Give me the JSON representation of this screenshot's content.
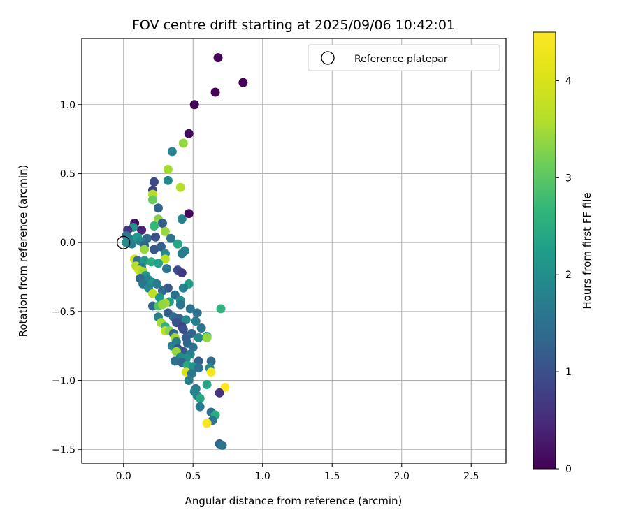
{
  "chart_data": {
    "type": "scatter",
    "title": "FOV centre drift starting at 2025/09/06 10:42:01",
    "xlabel": "Angular distance from reference (arcmin)",
    "ylabel": "Rotation from reference (arcmin)",
    "xlim": [
      -0.3,
      2.75
    ],
    "ylim": [
      -1.6,
      1.48
    ],
    "xticks": [
      0.0,
      0.5,
      1.0,
      1.5,
      2.0,
      2.5
    ],
    "xtick_labels": [
      "0.0",
      "0.5",
      "1.0",
      "1.5",
      "2.0",
      "2.5"
    ],
    "yticks": [
      -1.5,
      -1.0,
      -0.5,
      0.0,
      0.5,
      1.0
    ],
    "ytick_labels": [
      "−1.5",
      "−1.0",
      "−0.5",
      "0.0",
      "0.5",
      "1.0"
    ],
    "grid": true,
    "legend": {
      "placement": "top-right",
      "entries": [
        "Reference platepar"
      ]
    },
    "reference": {
      "x": 0.0,
      "y": 0.0
    },
    "colorbar": {
      "label": "Hours from first FF file",
      "colormap": "viridis",
      "range": [
        0,
        4.5
      ],
      "ticks": [
        0,
        1,
        2,
        3,
        4
      ],
      "tick_labels": [
        "0",
        "1",
        "2",
        "3",
        "4"
      ]
    },
    "points": [
      {
        "x": 0.68,
        "y": 1.34,
        "h": 0.05
      },
      {
        "x": 0.86,
        "y": 1.16,
        "h": 0.05
      },
      {
        "x": 0.66,
        "y": 1.09,
        "h": 0.05
      },
      {
        "x": 0.51,
        "y": 1.0,
        "h": 0.05
      },
      {
        "x": 0.47,
        "y": 0.79,
        "h": 0.1
      },
      {
        "x": 0.43,
        "y": 0.72,
        "h": 3.4
      },
      {
        "x": 0.35,
        "y": 0.66,
        "h": 1.8
      },
      {
        "x": 0.32,
        "y": 0.53,
        "h": 3.5
      },
      {
        "x": 0.32,
        "y": 0.45,
        "h": 1.9
      },
      {
        "x": 0.41,
        "y": 0.4,
        "h": 3.6
      },
      {
        "x": 0.22,
        "y": 0.44,
        "h": 0.9
      },
      {
        "x": 0.21,
        "y": 0.38,
        "h": 0.8
      },
      {
        "x": 0.21,
        "y": 0.35,
        "h": 3.6
      },
      {
        "x": 0.21,
        "y": 0.31,
        "h": 3.1
      },
      {
        "x": 0.25,
        "y": 0.25,
        "h": 1.3
      },
      {
        "x": 0.47,
        "y": 0.21,
        "h": 0.1
      },
      {
        "x": 0.42,
        "y": 0.17,
        "h": 1.8
      },
      {
        "x": 0.25,
        "y": 0.17,
        "h": 3.3
      },
      {
        "x": 0.08,
        "y": 0.14,
        "h": 0.2
      },
      {
        "x": 0.28,
        "y": 0.14,
        "h": 1.2
      },
      {
        "x": 0.22,
        "y": 0.12,
        "h": 2.7
      },
      {
        "x": 0.07,
        "y": 0.11,
        "h": 2.1
      },
      {
        "x": 0.03,
        "y": 0.09,
        "h": 0.6
      },
      {
        "x": 0.13,
        "y": 0.09,
        "h": 0.4
      },
      {
        "x": 0.3,
        "y": 0.08,
        "h": 3.4
      },
      {
        "x": 0.02,
        "y": 0.05,
        "h": 1.5
      },
      {
        "x": 0.04,
        "y": 0.03,
        "h": 1.7
      },
      {
        "x": 0.1,
        "y": 0.04,
        "h": 2.2
      },
      {
        "x": 0.17,
        "y": 0.03,
        "h": 1.4
      },
      {
        "x": 0.23,
        "y": 0.04,
        "h": 1.0
      },
      {
        "x": 0.34,
        "y": 0.03,
        "h": 1.6
      },
      {
        "x": 0.12,
        "y": 0.01,
        "h": 1.9
      },
      {
        "x": 0.02,
        "y": 0.0,
        "h": 2.0
      },
      {
        "x": 0.06,
        "y": -0.01,
        "h": 1.8
      },
      {
        "x": 0.15,
        "y": -0.02,
        "h": 1.3
      },
      {
        "x": 0.27,
        "y": -0.03,
        "h": 1.2
      },
      {
        "x": 0.39,
        "y": -0.01,
        "h": 2.4
      },
      {
        "x": 0.15,
        "y": -0.05,
        "h": 3.4
      },
      {
        "x": 0.22,
        "y": -0.05,
        "h": 1.1
      },
      {
        "x": 0.3,
        "y": -0.08,
        "h": 1.9
      },
      {
        "x": 0.44,
        "y": -0.06,
        "h": 1.8
      },
      {
        "x": 0.42,
        "y": -0.08,
        "h": 1.7
      },
      {
        "x": 0.08,
        "y": -0.12,
        "h": 3.9
      },
      {
        "x": 0.1,
        "y": -0.13,
        "h": 1.5
      },
      {
        "x": 0.15,
        "y": -0.13,
        "h": 2.2
      },
      {
        "x": 0.3,
        "y": -0.12,
        "h": 3.7
      },
      {
        "x": 0.2,
        "y": -0.14,
        "h": 2.5
      },
      {
        "x": 0.25,
        "y": -0.15,
        "h": 2.3
      },
      {
        "x": 0.09,
        "y": -0.17,
        "h": 3.6
      },
      {
        "x": 0.13,
        "y": -0.18,
        "h": 1.7
      },
      {
        "x": 0.31,
        "y": -0.19,
        "h": 1.6
      },
      {
        "x": 0.39,
        "y": -0.2,
        "h": 0.9
      },
      {
        "x": 0.42,
        "y": -0.22,
        "h": 0.7
      },
      {
        "x": 0.11,
        "y": -0.2,
        "h": 3.8
      },
      {
        "x": 0.14,
        "y": -0.21,
        "h": 3.5
      },
      {
        "x": 0.16,
        "y": -0.24,
        "h": 2.1
      },
      {
        "x": 0.12,
        "y": -0.26,
        "h": 1.4
      },
      {
        "x": 0.18,
        "y": -0.27,
        "h": 1.8
      },
      {
        "x": 0.21,
        "y": -0.29,
        "h": 2.1
      },
      {
        "x": 0.14,
        "y": -0.3,
        "h": 1.6
      },
      {
        "x": 0.24,
        "y": -0.3,
        "h": 1.7
      },
      {
        "x": 0.47,
        "y": -0.3,
        "h": 2.3
      },
      {
        "x": 0.43,
        "y": -0.33,
        "h": 1.8
      },
      {
        "x": 0.18,
        "y": -0.33,
        "h": 1.9
      },
      {
        "x": 0.32,
        "y": -0.33,
        "h": 1.1
      },
      {
        "x": 0.28,
        "y": -0.35,
        "h": 1.4
      },
      {
        "x": 0.21,
        "y": -0.37,
        "h": 3.7
      },
      {
        "x": 0.37,
        "y": -0.38,
        "h": 1.5
      },
      {
        "x": 0.26,
        "y": -0.4,
        "h": 2.2
      },
      {
        "x": 0.33,
        "y": -0.43,
        "h": 2.3
      },
      {
        "x": 0.41,
        "y": -0.42,
        "h": 2.0
      },
      {
        "x": 0.3,
        "y": -0.44,
        "h": 3.5
      },
      {
        "x": 0.21,
        "y": -0.46,
        "h": 1.3
      },
      {
        "x": 0.25,
        "y": -0.46,
        "h": 2.9
      },
      {
        "x": 0.28,
        "y": -0.45,
        "h": 3.4
      },
      {
        "x": 0.41,
        "y": -0.45,
        "h": 1.6
      },
      {
        "x": 0.48,
        "y": -0.48,
        "h": 1.6
      },
      {
        "x": 0.7,
        "y": -0.48,
        "h": 2.6
      },
      {
        "x": 0.53,
        "y": -0.51,
        "h": 1.5
      },
      {
        "x": 0.32,
        "y": -0.51,
        "h": 1.2
      },
      {
        "x": 0.25,
        "y": -0.54,
        "h": 1.8
      },
      {
        "x": 0.36,
        "y": -0.54,
        "h": 1.4
      },
      {
        "x": 0.4,
        "y": -0.55,
        "h": 1.2
      },
      {
        "x": 0.45,
        "y": -0.56,
        "h": 1.9
      },
      {
        "x": 0.27,
        "y": -0.58,
        "h": 3.5
      },
      {
        "x": 0.38,
        "y": -0.58,
        "h": 1.0
      },
      {
        "x": 0.52,
        "y": -0.57,
        "h": 1.7
      },
      {
        "x": 0.3,
        "y": -0.61,
        "h": 2.6
      },
      {
        "x": 0.42,
        "y": -0.61,
        "h": 0.8
      },
      {
        "x": 0.56,
        "y": -0.62,
        "h": 1.6
      },
      {
        "x": 0.3,
        "y": -0.64,
        "h": 3.7
      },
      {
        "x": 0.33,
        "y": -0.64,
        "h": 3.3
      },
      {
        "x": 0.43,
        "y": -0.63,
        "h": 1.0
      },
      {
        "x": 0.36,
        "y": -0.66,
        "h": 1.3
      },
      {
        "x": 0.49,
        "y": -0.66,
        "h": 1.3
      },
      {
        "x": 0.37,
        "y": -0.69,
        "h": 3.5
      },
      {
        "x": 0.45,
        "y": -0.69,
        "h": 1.2
      },
      {
        "x": 0.54,
        "y": -0.69,
        "h": 1.9
      },
      {
        "x": 0.6,
        "y": -0.68,
        "h": 2.4
      },
      {
        "x": 0.6,
        "y": -0.69,
        "h": 3.4
      },
      {
        "x": 0.38,
        "y": -0.72,
        "h": 1.7
      },
      {
        "x": 0.46,
        "y": -0.73,
        "h": 1.3
      },
      {
        "x": 0.35,
        "y": -0.75,
        "h": 1.8
      },
      {
        "x": 0.39,
        "y": -0.77,
        "h": 1.0
      },
      {
        "x": 0.5,
        "y": -0.76,
        "h": 1.5
      },
      {
        "x": 0.43,
        "y": -0.79,
        "h": 1.1
      },
      {
        "x": 0.38,
        "y": -0.79,
        "h": 3.4
      },
      {
        "x": 0.48,
        "y": -0.81,
        "h": 1.8
      },
      {
        "x": 0.41,
        "y": -0.83,
        "h": 1.9
      },
      {
        "x": 0.45,
        "y": -0.84,
        "h": 2.0
      },
      {
        "x": 0.37,
        "y": -0.86,
        "h": 1.5
      },
      {
        "x": 0.42,
        "y": -0.87,
        "h": 1.3
      },
      {
        "x": 0.54,
        "y": -0.86,
        "h": 1.3
      },
      {
        "x": 0.63,
        "y": -0.86,
        "h": 1.4
      },
      {
        "x": 0.46,
        "y": -0.89,
        "h": 2.4
      },
      {
        "x": 0.5,
        "y": -0.9,
        "h": 2.1
      },
      {
        "x": 0.54,
        "y": -0.91,
        "h": 1.5
      },
      {
        "x": 0.62,
        "y": -0.91,
        "h": 1.9
      },
      {
        "x": 0.63,
        "y": -0.94,
        "h": 4.4
      },
      {
        "x": 0.45,
        "y": -0.94,
        "h": 4.0
      },
      {
        "x": 0.49,
        "y": -0.95,
        "h": 1.6
      },
      {
        "x": 0.47,
        "y": -1.0,
        "h": 1.7
      },
      {
        "x": 0.52,
        "y": -1.06,
        "h": 1.6
      },
      {
        "x": 0.51,
        "y": -1.08,
        "h": 1.8
      },
      {
        "x": 0.6,
        "y": -1.03,
        "h": 2.4
      },
      {
        "x": 0.73,
        "y": -1.05,
        "h": 4.5
      },
      {
        "x": 0.53,
        "y": -1.11,
        "h": 1.8
      },
      {
        "x": 0.55,
        "y": -1.13,
        "h": 2.4
      },
      {
        "x": 0.69,
        "y": -1.09,
        "h": 0.6
      },
      {
        "x": 0.55,
        "y": -1.19,
        "h": 1.7
      },
      {
        "x": 0.63,
        "y": -1.23,
        "h": 1.5
      },
      {
        "x": 0.66,
        "y": -1.25,
        "h": 2.5
      },
      {
        "x": 0.64,
        "y": -1.29,
        "h": 1.6
      },
      {
        "x": 0.6,
        "y": -1.31,
        "h": 4.4
      },
      {
        "x": 0.69,
        "y": -1.46,
        "h": 1.3
      },
      {
        "x": 0.71,
        "y": -1.47,
        "h": 1.6
      }
    ]
  }
}
